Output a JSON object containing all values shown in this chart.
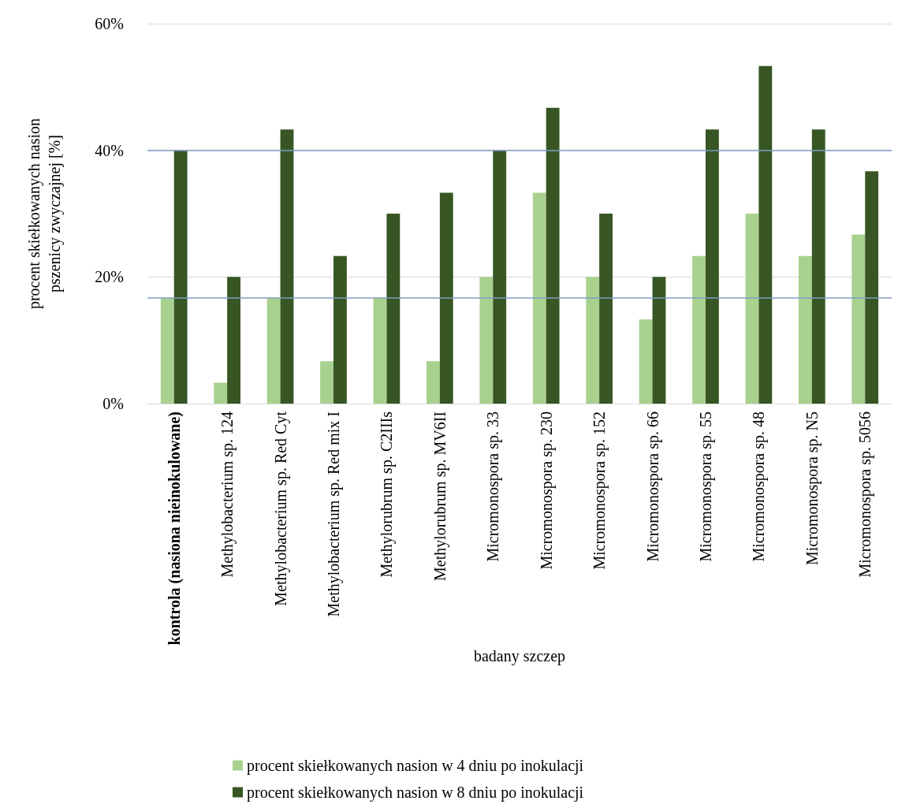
{
  "chart_data": {
    "type": "bar",
    "xlabel": "badany szczep",
    "ylabel": "procent skiełkowanych nasion pszenicy zwyczajnej [%]",
    "categories": [
      "kontrola (nasiona nieinokulowane)",
      "Methylobacterium sp. 124",
      "Methylobacterium sp. Red Cyt",
      "Methylobacterium sp. Red mix I",
      "Methylorubrum sp. C2IIIs",
      "Methylorubrum sp. MV6II",
      "Micromonospora sp. 33",
      "Micromonospora sp. 230",
      "Micromonospora sp. 152",
      "Micromonospora sp. 66",
      "Micromonospora sp. 55",
      "Micromonospora sp. 48",
      "Micromonospora sp. N5",
      "Micromonospora sp. 5056"
    ],
    "series": [
      {
        "name": "procent skiełkowanych nasion w 4 dniu po inokulacji",
        "color": "#a9d18e",
        "values": [
          16.7,
          3.3,
          16.7,
          6.7,
          16.7,
          6.7,
          20,
          33.3,
          20,
          13.3,
          23.3,
          30,
          23.3,
          26.7
        ]
      },
      {
        "name": "procent skiełkowanych nasion w 8 dniu po inokulacji",
        "color": "#375623",
        "values": [
          40,
          20,
          43.3,
          23.3,
          30,
          33.3,
          40,
          46.7,
          30,
          20,
          43.3,
          53.3,
          43.3,
          36.7
        ]
      }
    ],
    "ylim": [
      0,
      60
    ],
    "yticks": [
      {
        "value": 0,
        "label": "0%"
      },
      {
        "value": 20,
        "label": "20%"
      },
      {
        "value": 40,
        "label": "40%"
      },
      {
        "value": 60,
        "label": "60%"
      }
    ],
    "grid": "y",
    "legend": "bottom",
    "ref_lines": [
      {
        "axis": "y",
        "value": 40,
        "label": null,
        "color": "#7f9cc4"
      },
      {
        "axis": "y",
        "value": 16.7,
        "label": null,
        "color": "#7f9cc4"
      }
    ]
  }
}
